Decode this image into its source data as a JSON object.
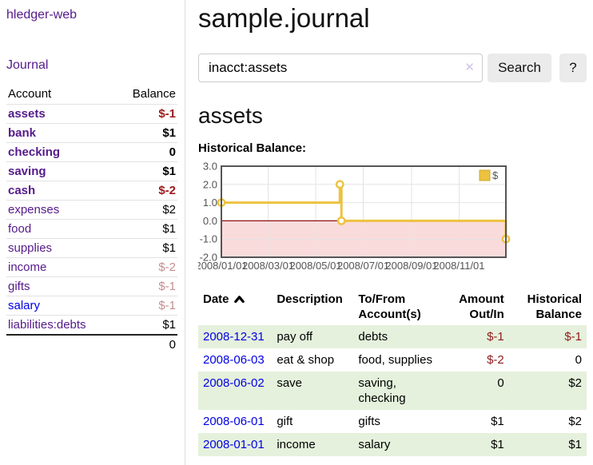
{
  "sidebar": {
    "brand": "hledger-web",
    "journal_link": "Journal",
    "accounts_header": {
      "account": "Account",
      "balance": "Balance"
    },
    "accounts": [
      {
        "name": "assets",
        "level": 1,
        "bold": true,
        "value": "$-1",
        "value_style": "darkred",
        "link_style": "purple"
      },
      {
        "name": "bank",
        "level": 2,
        "bold": true,
        "value": "$1",
        "value_style": "black",
        "link_style": "purple"
      },
      {
        "name": "checking",
        "level": 3,
        "bold": true,
        "value": "0",
        "value_style": "black",
        "link_style": "purple"
      },
      {
        "name": "saving",
        "level": 3,
        "bold": true,
        "value": "$1",
        "value_style": "black",
        "link_style": "purple"
      },
      {
        "name": "cash",
        "level": 2,
        "bold": true,
        "value": "$-2",
        "value_style": "darkred",
        "link_style": "purple"
      },
      {
        "name": "expenses",
        "level": 1,
        "bold": false,
        "value": "$2",
        "value_style": "black",
        "link_style": "purple"
      },
      {
        "name": "food",
        "level": 2,
        "bold": false,
        "value": "$1",
        "value_style": "black",
        "link_style": "purple"
      },
      {
        "name": "supplies",
        "level": 2,
        "bold": false,
        "value": "$1",
        "value_style": "black",
        "link_style": "purple"
      },
      {
        "name": "income",
        "level": 1,
        "bold": false,
        "value": "$-2",
        "value_style": "rose",
        "link_style": "purple"
      },
      {
        "name": "gifts",
        "level": 2,
        "bold": false,
        "value": "$-1",
        "value_style": "rose",
        "link_style": "purple"
      },
      {
        "name": "salary",
        "level": 2,
        "bold": false,
        "value": "$-1",
        "value_style": "rose",
        "link_style": "blue"
      },
      {
        "name": "liabilities:debts",
        "level": 1,
        "bold": false,
        "value": "$1",
        "value_style": "black",
        "link_style": "purple"
      }
    ],
    "total": "0"
  },
  "header": {
    "title": "sample.journal"
  },
  "search": {
    "value": "inacct:assets",
    "clear_icon": "✕",
    "button_label": "Search",
    "help_label": "?"
  },
  "account_page": {
    "heading": "assets",
    "chart_label": "Historical Balance:"
  },
  "chart_data": {
    "type": "line",
    "title": "Historical Balance:",
    "legend": [
      {
        "label": "$",
        "color": "#edc240"
      }
    ],
    "legend_position": "top-right",
    "grid": true,
    "ylim": [
      -2.0,
      3.0
    ],
    "y_ticks": [
      "3.0",
      "2.0",
      "1.0",
      "0.0",
      "-1.0",
      "-2.0"
    ],
    "y_tick_values": [
      3,
      2,
      1,
      0,
      -1,
      -2
    ],
    "x_range_days": [
      0,
      365
    ],
    "x_ticks": [
      {
        "label": "2008/01/01",
        "day": 0
      },
      {
        "label": "2008/03/01",
        "day": 60
      },
      {
        "label": "2008/05/01",
        "day": 121
      },
      {
        "label": "2008/07/01",
        "day": 182
      },
      {
        "label": "2008/09/01",
        "day": 244
      },
      {
        "label": "2008/11/01",
        "day": 305
      }
    ],
    "series": [
      {
        "name": "$",
        "color": "#edc240",
        "step": true,
        "points": [
          {
            "date": "2008/01/01",
            "day": 0,
            "value": 1
          },
          {
            "date": "2008/06/01",
            "day": 152,
            "value": 2
          },
          {
            "date": "2008/06/03",
            "day": 154,
            "value": 0
          },
          {
            "date": "2008/12/31",
            "day": 365,
            "value": -1
          }
        ]
      }
    ],
    "negative_region": {
      "below": 0,
      "fill": "#fadbdb",
      "zero_line_color": "#8c0e0e"
    }
  },
  "register": {
    "columns": [
      {
        "label": "Date",
        "align": "left",
        "sortable": true
      },
      {
        "label": "Description",
        "align": "left"
      },
      {
        "label": "To/From Account(s)",
        "align": "left"
      },
      {
        "label": "Amount Out/In",
        "align": "right"
      },
      {
        "label": "Historical Balance",
        "align": "right"
      }
    ],
    "rows": [
      {
        "date": "2008-12-31",
        "description": "pay off",
        "accounts": "debts",
        "amount": "$-1",
        "amount_negative": true,
        "balance": "$-1",
        "balance_negative": true,
        "shaded": true
      },
      {
        "date": "2008-06-03",
        "description": "eat & shop",
        "accounts": "food, supplies",
        "amount": "$-2",
        "amount_negative": true,
        "balance": "0",
        "balance_negative": false,
        "shaded": false
      },
      {
        "date": "2008-06-02",
        "description": "save",
        "accounts": "saving,\nchecking",
        "amount": "0",
        "amount_negative": false,
        "balance": "$2",
        "balance_negative": false,
        "shaded": true
      },
      {
        "date": "2008-06-01",
        "description": "gift",
        "accounts": "gifts",
        "amount": "$1",
        "amount_negative": false,
        "balance": "$2",
        "balance_negative": false,
        "shaded": false
      },
      {
        "date": "2008-01-01",
        "description": "income",
        "accounts": "salary",
        "amount": "$1",
        "amount_negative": false,
        "balance": "$1",
        "balance_negative": false,
        "shaded": true
      }
    ]
  },
  "colors": {
    "link_purple": "#551a8b",
    "link_blue": "#0000e6",
    "negative_strong": "#9d1a1a",
    "negative_soft": "#c48f8f",
    "row_green": "#e5f1dc",
    "chart_line_gold": "#edc240",
    "chart_negative_fill": "#fadbdb",
    "chart_zero_line": "#8c0e0e",
    "chart_border": "#555555",
    "grid_line": "#e3e3e3",
    "tick_text": "#545454"
  }
}
